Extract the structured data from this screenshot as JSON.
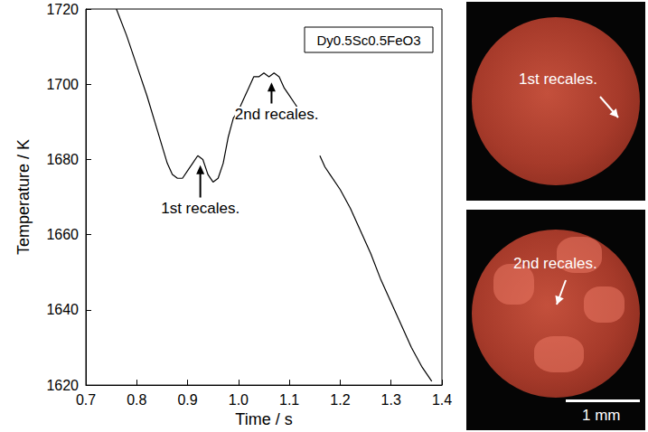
{
  "chart_data": {
    "type": "line",
    "x_label": "Time / s",
    "y_label": "Temperature / K",
    "legend_text": "Dy0.5Sc0.5FeO3",
    "series": [
      {
        "name": "Dy0.5Sc0.5FeO3",
        "color": "#000000",
        "x": [
          0.76,
          0.78,
          0.8,
          0.82,
          0.84,
          0.86,
          0.87,
          0.88,
          0.89,
          0.9,
          0.91,
          0.92,
          0.93,
          0.94,
          0.95,
          0.96,
          0.97,
          0.98,
          0.99,
          1.0,
          1.01,
          1.02,
          1.03,
          1.04,
          1.05,
          1.06,
          1.07,
          1.08,
          1.09,
          1.1,
          1.11,
          1.12,
          1.125,
          1.14,
          1.16,
          1.17,
          1.18,
          1.2,
          1.22,
          1.24,
          1.26,
          1.28,
          1.3,
          1.32,
          1.34,
          1.36,
          1.38
        ],
        "values": [
          1720,
          1713,
          1705,
          1697,
          1688,
          1679,
          1676,
          1675,
          1675,
          1677,
          1679,
          1681,
          1680,
          1676,
          1674,
          1675,
          1679,
          1686,
          1691,
          1693,
          1696,
          1699,
          1702,
          1702,
          1703,
          1702,
          1703,
          1702,
          1699,
          1697,
          1695,
          1693,
          1691,
          null,
          1681,
          1678,
          1676,
          1672,
          1667,
          1661,
          1655,
          1648,
          1642,
          1636,
          1630,
          1625,
          1621
        ]
      }
    ],
    "xlim": [
      0.7,
      1.4
    ],
    "xticks": [
      0.7,
      0.8,
      0.9,
      1.0,
      1.1,
      1.2,
      1.3,
      1.4
    ],
    "ylim": [
      1620,
      1720
    ],
    "yticks": [
      1620,
      1640,
      1660,
      1680,
      1700,
      1720
    ],
    "grid": false,
    "annotations": [
      {
        "text": "1st recales.",
        "xy": [
          0.925,
          1678.5
        ],
        "xytext": [
          0.925,
          1667
        ]
      },
      {
        "text": "2nd recales.",
        "xy": [
          1.065,
          1700.5
        ],
        "xytext": [
          1.075,
          1692
        ]
      }
    ]
  },
  "photos": [
    {
      "label": "1st recales."
    },
    {
      "label": "2nd recales.",
      "scale_bar": "1 mm"
    }
  ]
}
